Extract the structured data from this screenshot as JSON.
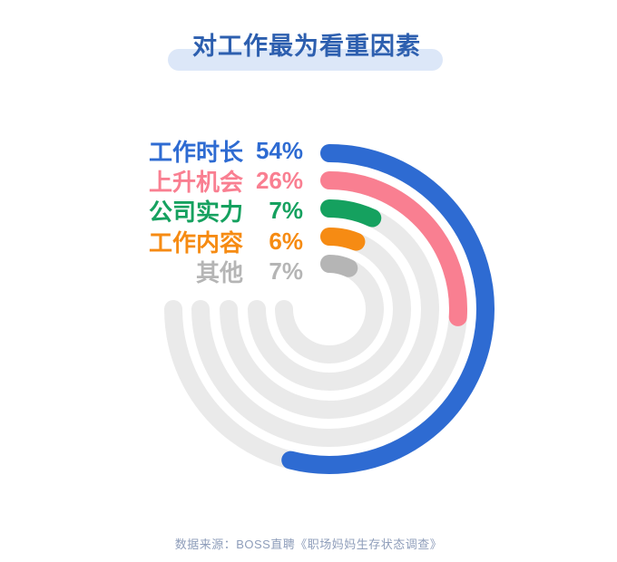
{
  "header": {
    "title": "对工作最为看重因素"
  },
  "chart_data": {
    "type": "bar",
    "subtype": "radial-concentric-arcs",
    "title": "对工作最为看重因素",
    "unit": "%",
    "categories": [
      "工作时长",
      "上升机会",
      "公司实力",
      "工作内容",
      "其他"
    ],
    "values": [
      54,
      26,
      7,
      6,
      7
    ],
    "items": [
      {
        "label": "工作时长",
        "value": 54,
        "color": "#2e6bd2"
      },
      {
        "label": "上升机会",
        "value": 26,
        "color": "#f97f91"
      },
      {
        "label": "公司实力",
        "value": 7,
        "color": "#15a15f"
      },
      {
        "label": "工作内容",
        "value": 6,
        "color": "#f68b13"
      },
      {
        "label": "其他",
        "value": 7,
        "color": "#b5b5b5"
      }
    ],
    "layout": {
      "direction": "clockwise",
      "start_position": "12-oclock",
      "track_sweep_deg": 270,
      "track_color": "#eaeaea",
      "legend_position": "upper-left",
      "grid": false
    }
  },
  "footer": {
    "source": "数据来源：BOSS直聘《职场妈妈生存状态调查》"
  },
  "colors": {
    "background": "#ffffff",
    "title_text": "#2d5faf",
    "title_pill": "#dce7f8",
    "footer_text": "#8e9dba"
  }
}
